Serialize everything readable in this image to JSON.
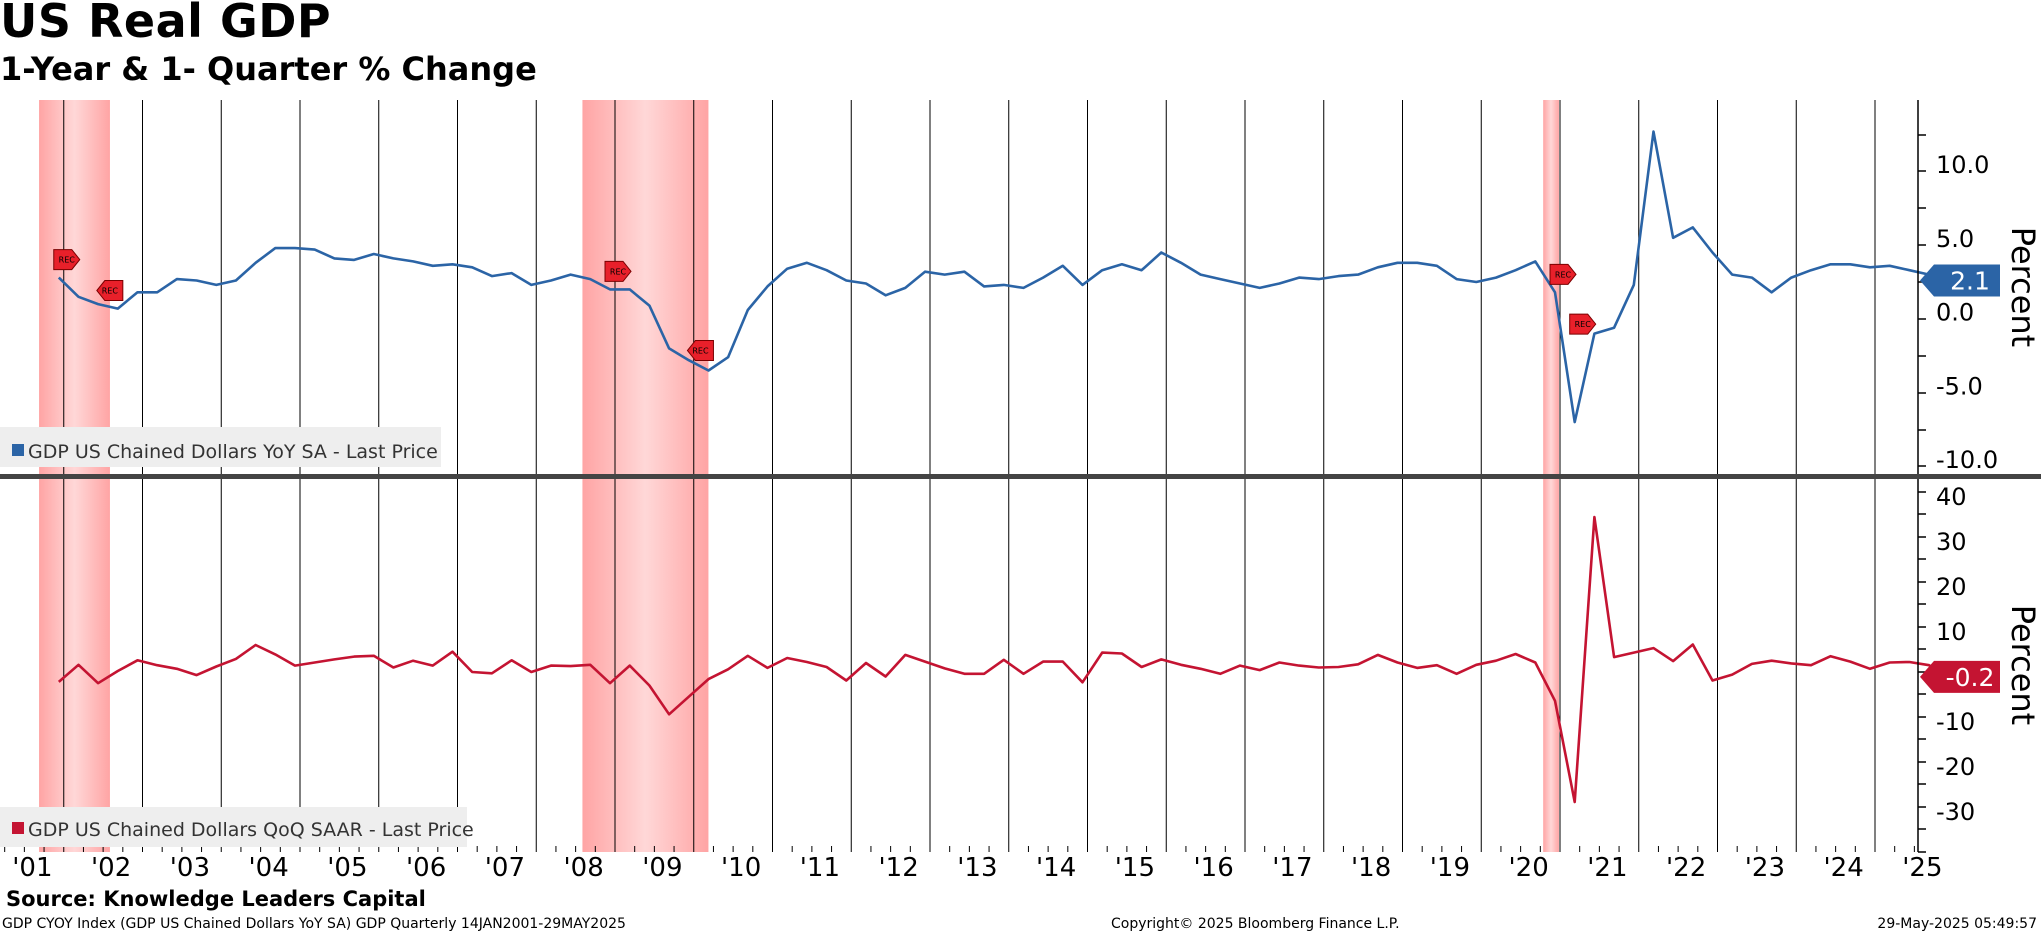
{
  "title": "US Real GDP",
  "subtitle": "1-Year & 1- Quarter % Change",
  "source": "Source: Knowledge Leaders Capital",
  "footer": {
    "left": "GDP CYOY Index (GDP US Chained Dollars YoY SA) GDP  Quarterly 14JAN2001-29MAY2025",
    "center": "Copyright© 2025 Bloomberg Finance L.P.",
    "right": "29-May-2025 05:49:57"
  },
  "colors": {
    "yoy": "#2b64a6",
    "qoq": "#c41432",
    "recession": "#ff9999",
    "grid": "#000000"
  },
  "chart_data": [
    {
      "type": "line",
      "legend": "GDP US Chained Dollars YoY SA - Last Price",
      "ylabel": "Percent",
      "ylim": [
        -10.5,
        14
      ],
      "yticks": [
        10.0,
        5.0,
        0.0,
        -5.0,
        -10.0
      ],
      "last_value": "2.1",
      "start": "2001Q1",
      "values": [
        2.3,
        1.0,
        0.5,
        0.2,
        1.3,
        1.3,
        2.2,
        2.1,
        1.8,
        2.1,
        3.3,
        4.3,
        4.3,
        4.2,
        3.6,
        3.5,
        3.9,
        3.6,
        3.4,
        3.1,
        3.2,
        3.0,
        2.4,
        2.6,
        1.8,
        2.1,
        2.5,
        2.2,
        1.5,
        1.5,
        0.4,
        -2.5,
        -3.3,
        -4.0,
        -3.1,
        0.1,
        1.7,
        2.9,
        3.3,
        2.8,
        2.1,
        1.9,
        1.1,
        1.6,
        2.7,
        2.5,
        2.7,
        1.7,
        1.8,
        1.6,
        2.3,
        3.1,
        1.8,
        2.8,
        3.2,
        2.8,
        4.0,
        3.3,
        2.5,
        2.2,
        1.9,
        1.6,
        1.9,
        2.3,
        2.2,
        2.4,
        2.5,
        3.0,
        3.3,
        3.3,
        3.1,
        2.2,
        2.0,
        2.3,
        2.8,
        3.4,
        1.3,
        -7.5,
        -1.5,
        -1.1,
        1.8,
        12.2,
        5.0,
        5.7,
        4.0,
        2.5,
        2.3,
        1.3,
        2.3,
        2.8,
        3.2,
        3.2,
        3.0,
        3.1,
        2.8,
        2.5,
        2.1
      ]
    },
    {
      "type": "line",
      "legend": "GDP US Chained Dollars QoQ SAAR - Last Price",
      "ylabel": "Percent",
      "ylim": [
        -39,
        42
      ],
      "yticks": [
        40,
        30,
        20,
        10,
        0,
        -10,
        -20,
        -30
      ],
      "last_value": "-0.2",
      "start": "2001Q1",
      "values": [
        -1.3,
        2.5,
        -1.6,
        1.1,
        3.5,
        2.4,
        1.6,
        0.2,
        2.1,
        3.8,
        6.9,
        4.8,
        2.3,
        3.0,
        3.7,
        4.3,
        4.5,
        1.9,
        3.4,
        2.3,
        5.4,
        0.9,
        0.6,
        3.5,
        0.9,
        2.3,
        2.2,
        2.5,
        -1.6,
        2.3,
        -2.1,
        -8.5,
        -4.6,
        -0.7,
        1.5,
        4.5,
        1.8,
        4.0,
        3.1,
        2.0,
        -1.0,
        2.9,
        -0.1,
        4.7,
        3.2,
        1.7,
        0.5,
        0.5,
        3.6,
        0.5,
        3.2,
        3.2,
        -1.4,
        5.2,
        5.0,
        2.0,
        3.7,
        2.5,
        1.6,
        0.5,
        2.3,
        1.3,
        3.0,
        2.3,
        1.9,
        2.0,
        2.6,
        4.7,
        3.0,
        1.8,
        2.4,
        0.5,
        2.5,
        3.4,
        4.9,
        3.0,
        -5.5,
        -28.0,
        35.3,
        4.2,
        5.2,
        6.2,
        3.3,
        7.0,
        -1.0,
        0.3,
        2.7,
        3.4,
        2.8,
        2.4,
        4.4,
        3.2,
        1.6,
        3.0,
        3.1,
        2.4,
        -0.2
      ]
    }
  ],
  "recessions": [
    {
      "start": 2001.0,
      "end": 2001.9
    },
    {
      "start": 2007.9,
      "end": 2009.5
    },
    {
      "start": 2020.1,
      "end": 2020.3
    }
  ],
  "rec_label": "REC",
  "rec_markers": [
    {
      "panel": 0,
      "quarter": 0,
      "side": "right",
      "offset": -18
    },
    {
      "panel": 0,
      "quarter": 3,
      "side": "left",
      "offset": -18
    },
    {
      "panel": 0,
      "quarter": 28,
      "side": "right",
      "offset": -18
    },
    {
      "panel": 0,
      "quarter": 33,
      "side": "left",
      "offset": -20
    },
    {
      "panel": 0,
      "quarter": 76,
      "side": "right",
      "offset": -18
    },
    {
      "panel": 0,
      "quarter": 77,
      "side": "right",
      "offset": -98
    }
  ],
  "x_labels": [
    "'01",
    "'02",
    "'03",
    "'04",
    "'05",
    "'06",
    "'07",
    "'08",
    "'09",
    "'10",
    "'11",
    "'12",
    "'13",
    "'14",
    "'15",
    "'16",
    "'17",
    "'18",
    "'19",
    "'20",
    "'21",
    "'22",
    "'23",
    "'24",
    "'25"
  ]
}
